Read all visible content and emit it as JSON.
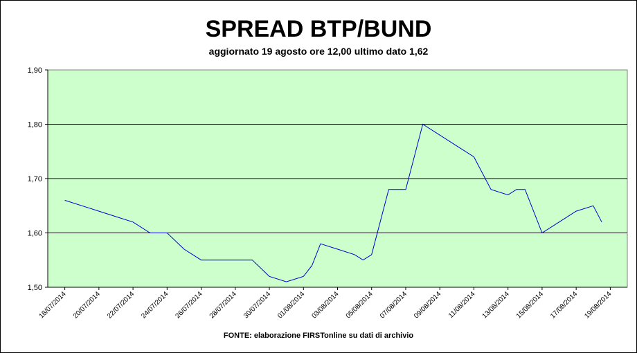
{
  "chart_data": {
    "type": "line",
    "title": "SPREAD BTP/BUND",
    "subtitle": "aggiornato 19 agosto ore 12,00 ultimo dato 1,62",
    "source": "FONTE: elaborazione FIRSTonline su dati di archivio",
    "xlabel": "",
    "ylabel": "",
    "ylim": [
      1.5,
      1.9
    ],
    "yticks": [
      "1,50",
      "1,60",
      "1,70",
      "1,80",
      "1,90"
    ],
    "xticks": [
      "18/07/2014",
      "20/07/2014",
      "22/07/2014",
      "24/07/2014",
      "26/07/2014",
      "28/07/2014",
      "30/07/2014",
      "01/08/2014",
      "03/08/2014",
      "05/08/2014",
      "07/08/2014",
      "09/08/2014",
      "11/08/2014",
      "13/08/2014",
      "15/08/2014",
      "17/08/2014",
      "19/08/2014"
    ],
    "grid": true,
    "plot_background": "#ccffcc",
    "line_color": "#0000cc",
    "series": [
      {
        "x": [
          0,
          2,
          3,
          4,
          5,
          6,
          7,
          8,
          9,
          10,
          11,
          12,
          13,
          14,
          14.5,
          15,
          16,
          17,
          17.5,
          18,
          19,
          20,
          21,
          22,
          23,
          24,
          25,
          26,
          26.5,
          27,
          28,
          29,
          30,
          31,
          31.5
        ],
        "values": [
          1.66,
          1.64,
          1.63,
          1.62,
          1.6,
          1.6,
          1.57,
          1.55,
          1.55,
          1.55,
          1.55,
          1.52,
          1.51,
          1.52,
          1.54,
          1.58,
          1.57,
          1.56,
          1.55,
          1.56,
          1.68,
          1.68,
          1.8,
          1.78,
          1.76,
          1.74,
          1.68,
          1.67,
          1.68,
          1.68,
          1.6,
          1.62,
          1.64,
          1.65,
          1.62
        ]
      }
    ]
  }
}
